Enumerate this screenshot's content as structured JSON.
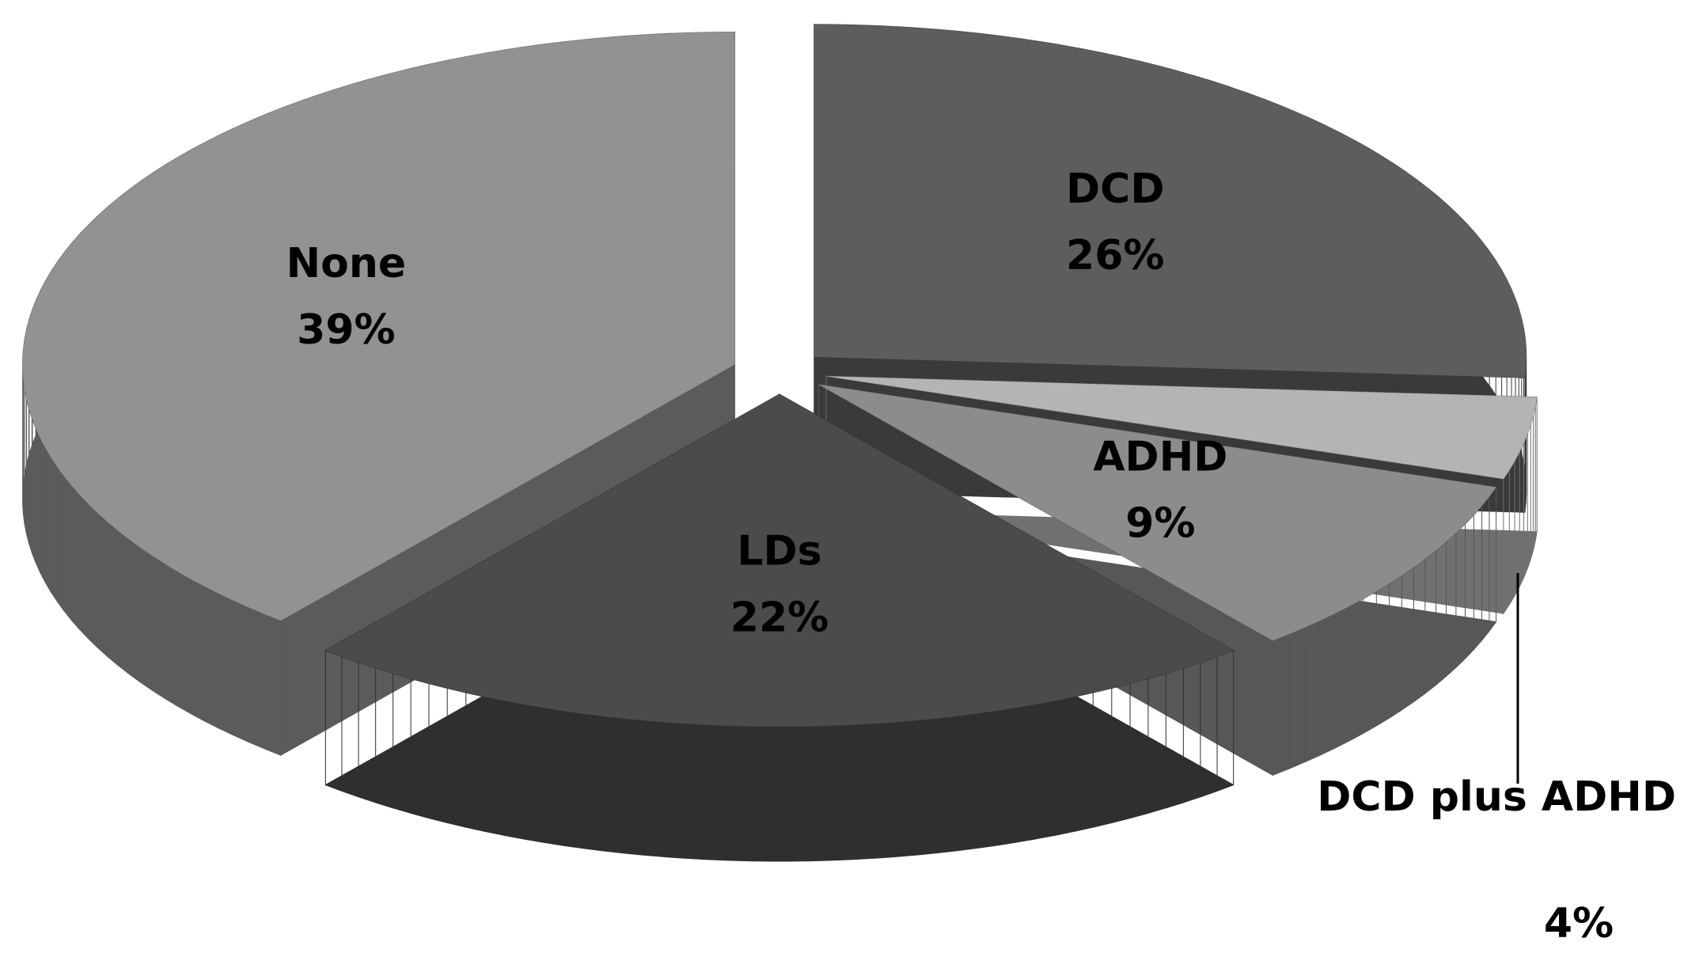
{
  "chart_data": {
    "type": "pie3d",
    "categories": [
      "DCD",
      "DCD plus ADHD",
      "ADHD",
      "LDs",
      "None"
    ],
    "values": [
      26,
      4,
      9,
      22,
      39
    ],
    "value_labels": [
      "26%",
      "4%",
      "9%",
      "22%",
      "39%"
    ],
    "colors": [
      "#5d5d5d",
      "#b4b4b4",
      "#8c8c8c",
      "#4b4b4b",
      "#929292"
    ]
  }
}
